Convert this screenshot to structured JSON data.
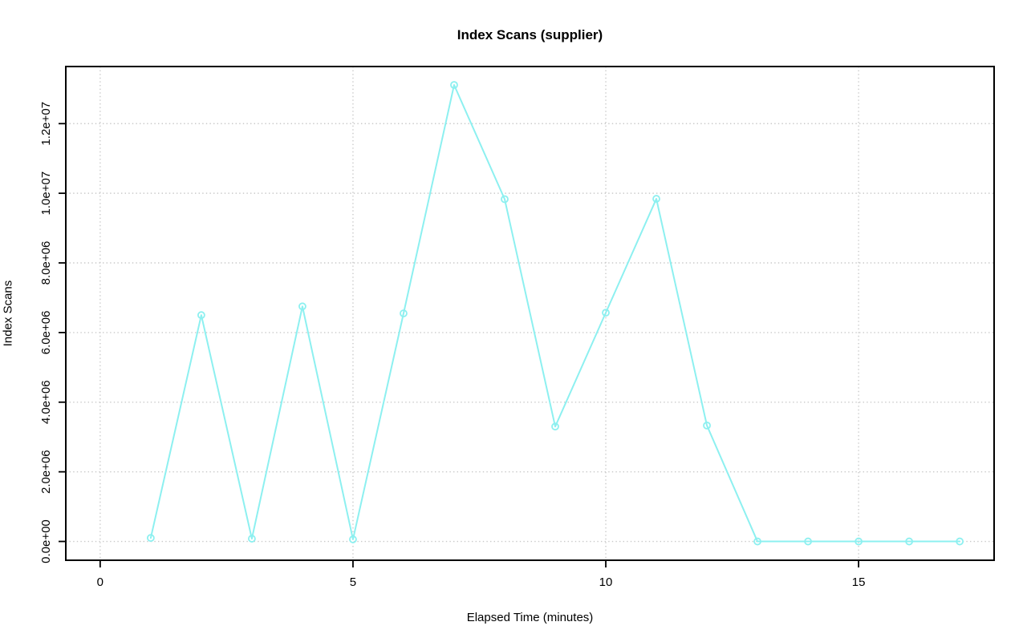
{
  "chart_data": {
    "type": "line",
    "title": "Index Scans (supplier)",
    "xlabel": "Elapsed Time (minutes)",
    "ylabel": "Index Scans",
    "x": [
      1,
      2,
      3,
      4,
      5,
      6,
      7,
      8,
      9,
      10,
      11,
      12,
      13,
      14,
      15,
      16,
      17
    ],
    "values": [
      100000,
      6500000,
      80000,
      6750000,
      60000,
      6550000,
      13110000,
      9830000,
      3300000,
      6570000,
      9840000,
      3330000,
      0,
      0,
      0,
      0,
      0
    ],
    "x_ticks": [
      0,
      5,
      10,
      15
    ],
    "x_tick_labels": [
      "0",
      "5",
      "10",
      "15"
    ],
    "y_ticks": [
      0,
      2000000,
      4000000,
      6000000,
      8000000,
      10000000,
      12000000
    ],
    "y_tick_labels": [
      "0.0e+00",
      "2.0e+06",
      "4.0e+06",
      "6.0e+06",
      "8.0e+06",
      "1.0e+07",
      "1.2e+07"
    ],
    "x_range": [
      -0.68,
      17.68
    ],
    "y_range": [
      -540000,
      13640000
    ],
    "grid": true,
    "grid_style": "dotted",
    "legend": "none",
    "marker": "open-circle",
    "colors": {
      "line": "#8DF0F0",
      "marker": "#8DF0F0",
      "grid": "#C9C9C9",
      "axis": "#000000",
      "text": "#000000",
      "background": "#FFFFFF"
    }
  }
}
